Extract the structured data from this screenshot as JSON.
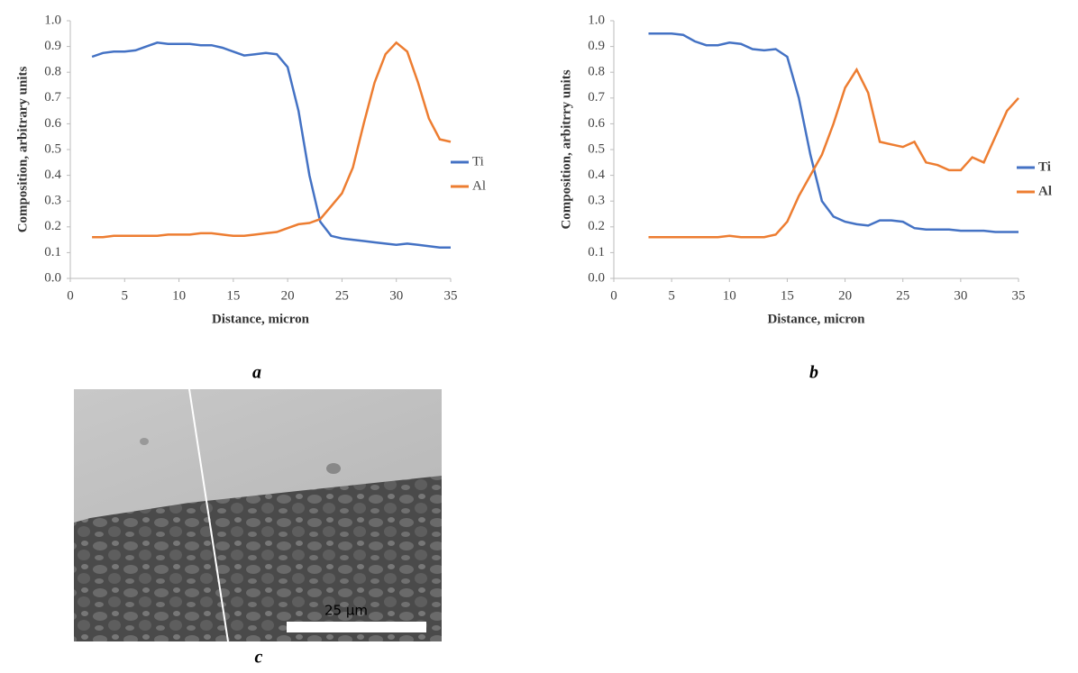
{
  "chart_data": [
    {
      "type": "line",
      "panel_label": "a",
      "x_label": "Distance, micron",
      "y_label": "Composition, arbitrary units",
      "x": [
        2,
        3,
        4,
        5,
        6,
        7,
        8,
        9,
        10,
        11,
        12,
        13,
        14,
        15,
        16,
        17,
        18,
        19,
        20,
        21,
        22,
        23,
        24,
        25,
        26,
        27,
        28,
        29,
        30,
        31,
        32,
        33,
        34,
        35
      ],
      "series": [
        {
          "name": "Ti",
          "color": "#4472c4",
          "values": [
            0.86,
            0.875,
            0.88,
            0.88,
            0.885,
            0.9,
            0.915,
            0.91,
            0.91,
            0.91,
            0.905,
            0.905,
            0.895,
            0.88,
            0.865,
            0.87,
            0.875,
            0.87,
            0.82,
            0.65,
            0.4,
            0.22,
            0.165,
            0.155,
            0.15,
            0.145,
            0.14,
            0.135,
            0.13,
            0.135,
            0.13,
            0.125,
            0.12,
            0.12
          ]
        },
        {
          "name": "Al",
          "color": "#ed7d31",
          "values": [
            0.16,
            0.16,
            0.165,
            0.165,
            0.165,
            0.165,
            0.165,
            0.17,
            0.17,
            0.17,
            0.175,
            0.175,
            0.17,
            0.165,
            0.165,
            0.17,
            0.175,
            0.18,
            0.195,
            0.21,
            0.215,
            0.23,
            0.28,
            0.33,
            0.43,
            0.6,
            0.76,
            0.87,
            0.915,
            0.88,
            0.76,
            0.62,
            0.54,
            0.53
          ]
        }
      ],
      "xlim": [
        0,
        35
      ],
      "xticks": [
        0,
        5,
        10,
        15,
        20,
        25,
        30,
        35
      ],
      "ylim": [
        0,
        1
      ],
      "yticks": [
        {
          "value": 0,
          "label": "0.0"
        },
        0.1,
        0.2,
        0.3,
        0.4,
        0.5,
        0.6,
        0.7,
        0.8,
        0.9,
        {
          "value": 1,
          "label": "1.0"
        }
      ],
      "grid": false,
      "legend": "right",
      "bold_labels": false
    },
    {
      "type": "line",
      "panel_label": "b",
      "x_label": "Distance, micron",
      "y_label": "Composition, arbitrry units",
      "x": [
        3,
        4,
        5,
        6,
        7,
        8,
        9,
        10,
        11,
        12,
        13,
        14,
        15,
        16,
        17,
        18,
        19,
        20,
        21,
        22,
        23,
        24,
        25,
        26,
        27,
        28,
        29,
        30,
        31,
        32,
        33,
        34,
        35
      ],
      "series": [
        {
          "name": "Ti",
          "color": "#4472c4",
          "values": [
            0.95,
            0.95,
            0.95,
            0.945,
            0.92,
            0.905,
            0.905,
            0.915,
            0.91,
            0.89,
            0.885,
            0.89,
            0.86,
            0.7,
            0.48,
            0.3,
            0.24,
            0.22,
            0.21,
            0.205,
            0.225,
            0.225,
            0.22,
            0.195,
            0.19,
            0.19,
            0.19,
            0.185,
            0.185,
            0.185,
            0.18,
            0.18,
            0.18
          ]
        },
        {
          "name": "Al",
          "color": "#ed7d31",
          "values": [
            0.16,
            0.16,
            0.16,
            0.16,
            0.16,
            0.16,
            0.16,
            0.165,
            0.16,
            0.16,
            0.16,
            0.17,
            0.22,
            0.32,
            0.4,
            0.48,
            0.6,
            0.74,
            0.81,
            0.72,
            0.53,
            0.52,
            0.51,
            0.53,
            0.45,
            0.44,
            0.42,
            0.42,
            0.47,
            0.45,
            0.55,
            0.65,
            0.7
          ]
        }
      ],
      "xlim": [
        0,
        35
      ],
      "xticks": [
        0,
        5,
        10,
        15,
        20,
        25,
        30,
        35
      ],
      "ylim": [
        0,
        1
      ],
      "yticks": [
        {
          "value": 0,
          "label": "0.0"
        },
        0.1,
        0.2,
        0.3,
        0.4,
        0.5,
        0.6,
        0.7,
        0.8,
        0.9,
        {
          "value": 1,
          "label": "1.0"
        }
      ],
      "grid": false,
      "legend": "right",
      "bold_labels": true
    }
  ],
  "image": {
    "panel_label": "c",
    "scale_bar": "25 µm"
  }
}
